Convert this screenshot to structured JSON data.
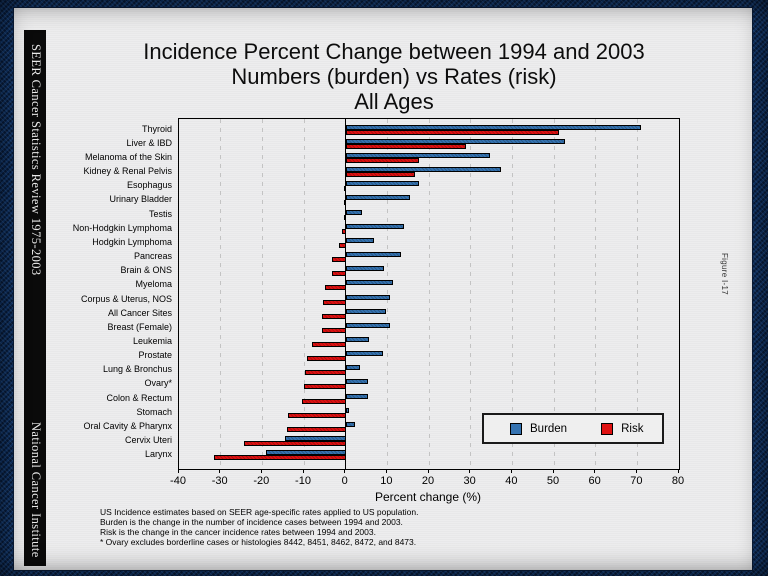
{
  "sidebar": {
    "top_text": "SEER Cancer Statistics Review 1975-2003",
    "bottom_text": "National Cancer Institute"
  },
  "title": {
    "line1": "Incidence Percent Change between 1994 and 2003",
    "line2": "Numbers (burden) vs Rates (risk)",
    "line3": "All Ages"
  },
  "figure_label": "Figure I-17",
  "chart_data": {
    "type": "bar",
    "orientation": "horizontal",
    "title": "Incidence Percent Change between 1994 and 2003 / Numbers (burden) vs Rates (risk) / All Ages",
    "categories": [
      "Thyroid",
      "Liver & IBD",
      "Melanoma of the Skin",
      "Kidney & Renal Pelvis",
      "Esophagus",
      "Urinary Bladder",
      "Testis",
      "Non-Hodgkin Lymphoma",
      "Hodgkin Lymphoma",
      "Pancreas",
      "Brain & ONS",
      "Myeloma",
      "Corpus & Uterus, NOS",
      "All Cancer Sites",
      "Breast (Female)",
      "Leukemia",
      "Prostate",
      "Lung & Bronchus",
      "Ovary*",
      "Colon & Rectum",
      "Stomach",
      "Oral Cavity & Pharynx",
      "Cervix Uteri",
      "Larynx"
    ],
    "series": [
      {
        "name": "Burden",
        "color": "#3573b1",
        "values": [
          70.9,
          52.7,
          34.7,
          37.4,
          17.5,
          15.5,
          4.0,
          14.0,
          6.9,
          13.2,
          9.2,
          11.4,
          10.7,
          9.7,
          10.7,
          5.7,
          8.9,
          3.5,
          5.3,
          5.4,
          0.9,
          2.3,
          -14.5,
          -19.1
        ]
      },
      {
        "name": "Risk",
        "color": "#df1111",
        "values": [
          51.2,
          28.9,
          17.6,
          16.6,
          -0.5,
          -0.4,
          -0.4,
          -0.8,
          -1.7,
          -3.3,
          -3.4,
          -4.9,
          -5.5,
          -5.7,
          -5.8,
          -8.1,
          -9.4,
          -9.7,
          -9.9,
          -10.6,
          -13.9,
          -14.1,
          -24.3,
          -31.5
        ]
      }
    ],
    "xlabel": "Percent change (%)",
    "xlim": [
      -40,
      80
    ],
    "xticks": [
      -40,
      -30,
      -20,
      -10,
      0,
      10,
      20,
      30,
      40,
      50,
      60,
      70,
      80
    ],
    "grid": "vertical dashed every 10",
    "zero_axis": true,
    "legend_position": "inside-bottom-right"
  },
  "footnotes": [
    "US Incidence estimates based on SEER age-specific rates applied to US population.",
    "Burden is the change in the number of incidence cases between 1994 and 2003.",
    "Risk is the change in the cancer incidence rates between 1994 and 2003.",
    "* Ovary excludes borderline cases or histologies 8442, 8451, 8462, 8472, and 8473."
  ]
}
